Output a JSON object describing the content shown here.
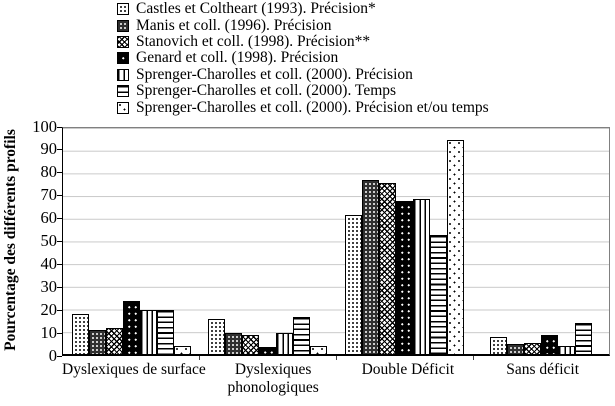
{
  "chart_data": {
    "type": "bar",
    "title": "",
    "xlabel": "",
    "ylabel": "Pourcentage des différents profils",
    "ylim": [
      0,
      100
    ],
    "ytick_step": 10,
    "yticks": [
      0,
      10,
      20,
      30,
      40,
      50,
      60,
      70,
      80,
      90,
      100
    ],
    "grid": true,
    "legend_position": "top",
    "categories": [
      "Dyslexiques de surface",
      "Dyslexiques phonologiques",
      "Double Déficit",
      "Sans déficit"
    ],
    "series": [
      {
        "name": "Castles et Coltheart (1993). Précision*",
        "pattern": "dot-grid",
        "values": [
          17,
          15,
          61,
          7
        ]
      },
      {
        "name": "Manis et coll. (1996). Précision",
        "pattern": "dark-dots",
        "values": [
          10,
          9,
          76,
          4
        ]
      },
      {
        "name": "Stanovich et coll. (1998). Précision**",
        "pattern": "crosshatch",
        "values": [
          11,
          8,
          75,
          4.5
        ]
      },
      {
        "name": "Genard et coll. (1998). Précision",
        "pattern": "black-dots",
        "values": [
          23,
          2.5,
          67,
          8
        ]
      },
      {
        "name": "Sprenger-Charolles et coll. (2000). Précision",
        "pattern": "v-stripes",
        "values": [
          19,
          9,
          68,
          3
        ]
      },
      {
        "name": "Sprenger-Charolles et coll. (2000). Temps",
        "pattern": "h-stripes",
        "values": [
          19,
          16,
          52,
          13
        ]
      },
      {
        "name": "Sprenger-Charolles et coll. (2000). Précision et/ou temps",
        "pattern": "sparse",
        "values": [
          3,
          3,
          94,
          0
        ]
      }
    ],
    "colors": {
      "background": "#ffffff",
      "bar_outline": "#000000",
      "gridline": "#c9c9c9",
      "axis": "#000000"
    }
  }
}
